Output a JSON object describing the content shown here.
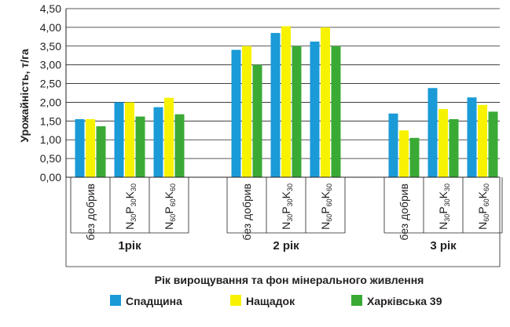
{
  "chart_data": {
    "type": "bar",
    "ylabel": "Урожайність, т/га",
    "xlabel": "Рік вирощування та фон мінерального живлення",
    "ylim": [
      0,
      4.5
    ],
    "yticks": [
      "0,00",
      "0,50",
      "1,00",
      "1,50",
      "2,00",
      "2,50",
      "3,00",
      "3,50",
      "4,00",
      "4,50"
    ],
    "grid": true,
    "legend_position": "bottom",
    "groups": [
      {
        "label": "1рік",
        "categories": [
          "без добрив",
          "N30P30K30",
          "N60P60K60"
        ]
      },
      {
        "label": "2 рік",
        "categories": [
          "без добрив",
          "N30P30K30",
          "N60P60K60"
        ]
      },
      {
        "label": "3 рік",
        "categories": [
          "без добрив",
          "N30P30K30",
          "N60P60K60"
        ]
      }
    ],
    "category_label_parts": {
      "plain": "без добрив",
      "n30": [
        "N",
        "30",
        "P",
        "30",
        "K",
        "30"
      ],
      "n60": [
        "N",
        "60",
        "P",
        "60",
        "K",
        "60"
      ]
    },
    "series": [
      {
        "name": "Спадщина",
        "color": "#1a9ad7",
        "values": [
          1.55,
          2.0,
          1.87,
          3.4,
          3.85,
          3.62,
          1.7,
          2.38,
          2.13
        ]
      },
      {
        "name": "Нащадок",
        "color": "#f7f200",
        "values": [
          1.55,
          2.0,
          2.12,
          3.5,
          4.03,
          4.0,
          1.25,
          1.82,
          1.93
        ]
      },
      {
        "name": "Харківська 39",
        "color": "#3aaa35",
        "values": [
          1.36,
          1.62,
          1.68,
          3.0,
          3.5,
          3.5,
          1.05,
          1.55,
          1.75
        ]
      }
    ]
  }
}
